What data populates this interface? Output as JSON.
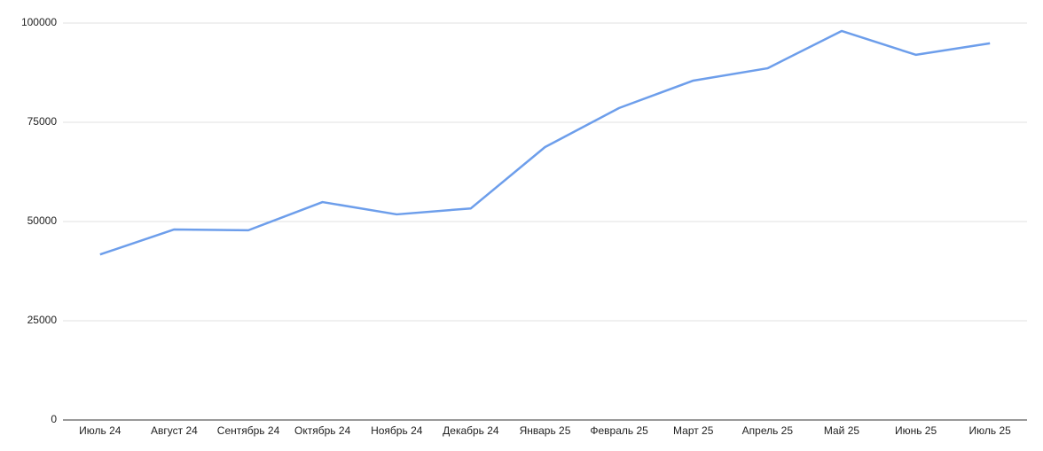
{
  "chart_data": {
    "type": "line",
    "categories": [
      "Июль 24",
      "Август 24",
      "Сентябрь 24",
      "Октябрь 24",
      "Ноябрь 24",
      "Декабрь 24",
      "Январь 25",
      "Февраль 25",
      "Март 25",
      "Апрель 25",
      "Май 25",
      "Июнь 25",
      "Июль 25"
    ],
    "series": [
      {
        "color": "#6d9eeb",
        "values": [
          41700,
          48000,
          47800,
          54900,
          51800,
          53300,
          68750,
          78600,
          85500,
          88600,
          98000,
          92000,
          94900
        ]
      }
    ],
    "ylim": [
      0,
      100000
    ],
    "yticks": [
      0,
      25000,
      50000,
      75000,
      100000
    ],
    "grid": true
  }
}
